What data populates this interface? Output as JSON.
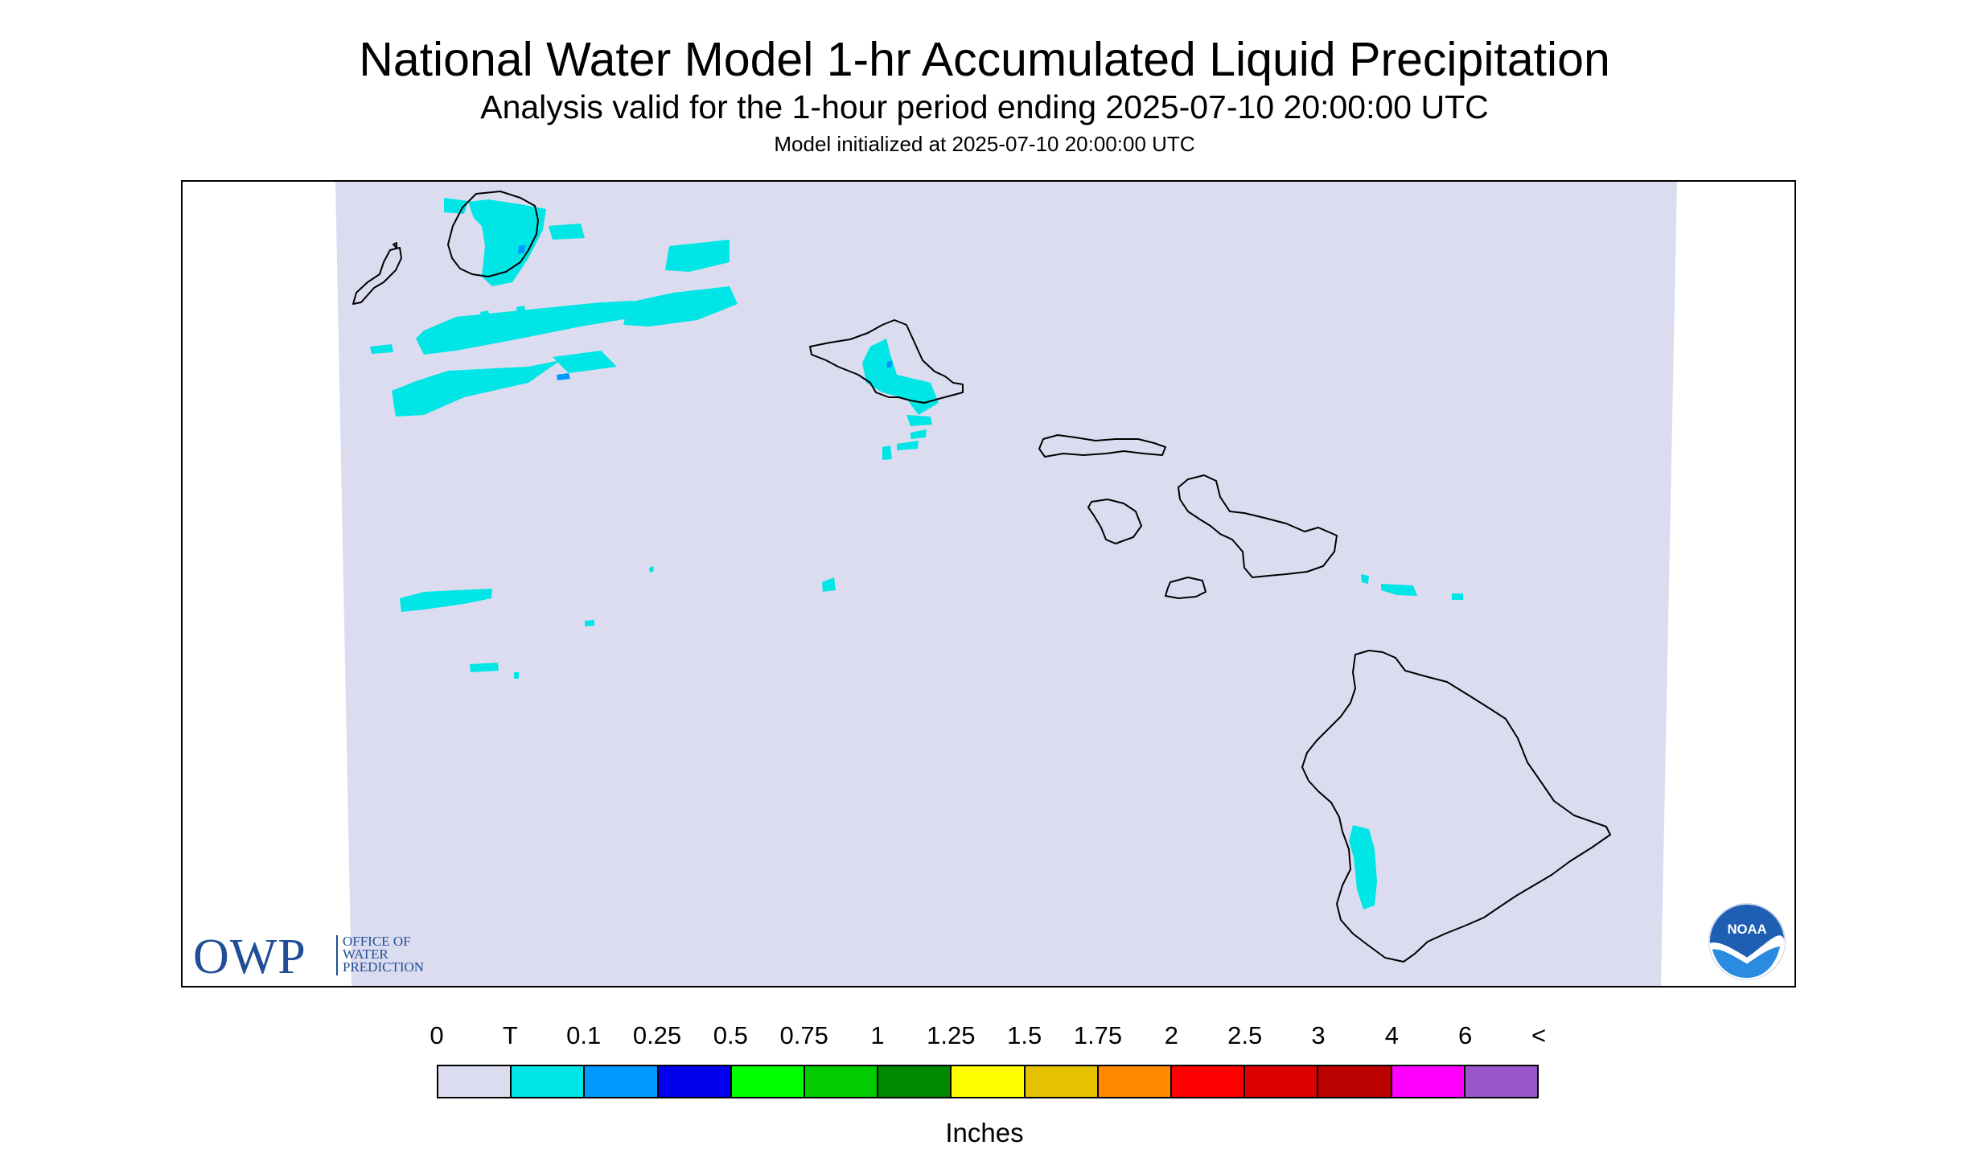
{
  "header": {
    "title": "National Water Model 1-hr Accumulated Liquid Precipitation",
    "subtitle": "Analysis valid for the 1-hour period ending 2025-07-10 20:00:00 UTC",
    "model_init": "Model initialized at 2025-07-10 20:00:00 UTC"
  },
  "map": {
    "background_color": "#dcdcf0",
    "coastline_color": "#000000",
    "islands": [
      "Kauai",
      "Niihau",
      "Oahu",
      "Molokai",
      "Lanai",
      "Maui",
      "Kahoolawe",
      "Hawaii"
    ]
  },
  "logos": {
    "owp_letters": "OWP",
    "owp_lines": [
      "OFFICE OF",
      "WATER",
      "PREDICTION"
    ],
    "noaa_text": "NOAA",
    "owp_color": "#1f4e96"
  },
  "legend": {
    "unit": "Inches",
    "labels": [
      "0",
      "T",
      "0.1",
      "0.25",
      "0.5",
      "0.75",
      "1",
      "1.25",
      "1.5",
      "1.75",
      "2",
      "2.5",
      "3",
      "4",
      "6",
      "<"
    ],
    "colors": [
      "#dcdcf0",
      "#00e5e5",
      "#0099ff",
      "#0000ee",
      "#00ff00",
      "#00cc00",
      "#008800",
      "#ffff00",
      "#e5c100",
      "#ff8800",
      "#ff0000",
      "#dd0000",
      "#bb0000",
      "#ff00ff",
      "#9955cc"
    ]
  }
}
